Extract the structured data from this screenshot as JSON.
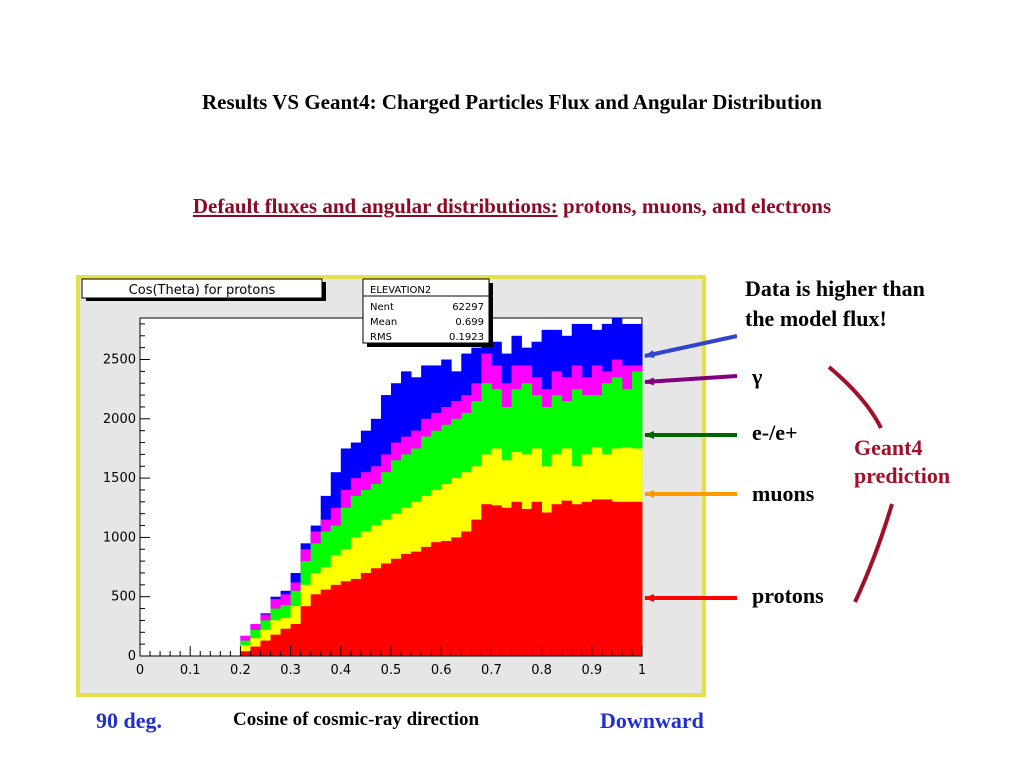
{
  "slide": {
    "title": "Results VS Geant4: Charged Particles Flux and Angular Distribution",
    "subtitle_underlined": "Default fluxes and angular distributions:",
    "subtitle_rest": " protons, muons, and electrons"
  },
  "annotations": {
    "data_higher_line1": "Data is higher than",
    "data_higher_line2": "the model flux!",
    "gamma": "γ",
    "electrons": "e-/e+",
    "muons": "muons",
    "protons": "protons",
    "geant4_line1": "Geant4",
    "geant4_line2": "prediction",
    "left_label": "90 deg.",
    "center_label": "Cosine of cosmic-ray direction",
    "right_label": "Downward"
  },
  "colors": {
    "frame": "#e6e04a",
    "canvas": "#e6e6e6",
    "plot": "#ffffff",
    "protons": "#ff0000",
    "muons": "#ffff00",
    "electrons": "#00ff00",
    "gamma": "#ff00ff",
    "data": "#0000ff",
    "arrow_data": "#3344cc",
    "arrow_gamma": "#800080",
    "arrow_electrons": "#006400",
    "arrow_muons": "#ff9900",
    "arrow_protons": "#ff0000",
    "brace": "#a0102a"
  },
  "chart_data": {
    "type": "bar",
    "title": "Cos(Theta) for protons",
    "stats_box": {
      "name": "ELEVATION2",
      "entries_label": "Nent",
      "entries_value": "62297",
      "mean_label": "Mean",
      "mean_value": "0.699",
      "rms_label": "RMS",
      "rms_value": "0.1923"
    },
    "xlabel": "",
    "ylabel": "",
    "xlim": [
      0,
      1
    ],
    "ylim": [
      0,
      2850
    ],
    "x_ticks": [
      "0",
      "0.1",
      "0.2",
      "0.3",
      "0.4",
      "0.5",
      "0.6",
      "0.7",
      "0.8",
      "0.9",
      "1"
    ],
    "y_ticks": [
      "0",
      "500",
      "1000",
      "1500",
      "2000",
      "2500"
    ],
    "bin_start": 0.2,
    "bin_width": 0.02,
    "series": [
      {
        "name": "protons",
        "values": [
          40,
          80,
          130,
          180,
          230,
          270,
          420,
          520,
          560,
          600,
          630,
          650,
          700,
          740,
          780,
          820,
          860,
          880,
          920,
          960,
          970,
          1000,
          1050,
          1150,
          1280,
          1270,
          1250,
          1300,
          1240,
          1300,
          1210,
          1280,
          1310,
          1280,
          1300,
          1320,
          1320,
          1300,
          1300,
          1300
        ]
      },
      {
        "name": "muons",
        "values": [
          90,
          150,
          220,
          300,
          320,
          420,
          600,
          700,
          750,
          850,
          900,
          1000,
          1050,
          1100,
          1150,
          1200,
          1250,
          1300,
          1350,
          1400,
          1450,
          1500,
          1550,
          1600,
          1700,
          1750,
          1650,
          1720,
          1700,
          1750,
          1600,
          1700,
          1750,
          1600,
          1700,
          1760,
          1700,
          1750,
          1760,
          1750
        ]
      },
      {
        "name": "e-/e+",
        "values": [
          130,
          220,
          300,
          400,
          430,
          550,
          800,
          950,
          1050,
          1100,
          1250,
          1350,
          1400,
          1450,
          1550,
          1650,
          1700,
          1750,
          1850,
          1900,
          1950,
          2000,
          2050,
          2150,
          2300,
          2250,
          2100,
          2250,
          2300,
          2200,
          2100,
          2200,
          2150,
          2250,
          2200,
          2200,
          2300,
          2350,
          2250,
          2400
        ]
      },
      {
        "name": "γ",
        "values": [
          170,
          270,
          350,
          480,
          520,
          620,
          900,
          1050,
          1150,
          1250,
          1400,
          1500,
          1550,
          1600,
          1700,
          1800,
          1850,
          1900,
          2000,
          2050,
          2100,
          2150,
          2200,
          2300,
          2550,
          2450,
          2300,
          2450,
          2450,
          2350,
          2250,
          2400,
          2350,
          2450,
          2350,
          2450,
          2400,
          2500,
          2450,
          2450
        ]
      },
      {
        "name": "data",
        "values": [
          170,
          270,
          360,
          500,
          550,
          700,
          950,
          1100,
          1350,
          1550,
          1750,
          1800,
          1900,
          2000,
          2200,
          2300,
          2400,
          2350,
          2450,
          2450,
          2500,
          2400,
          2550,
          2600,
          2750,
          2650,
          2550,
          2700,
          2600,
          2650,
          2750,
          2750,
          2700,
          2800,
          2800,
          2750,
          2800,
          2850,
          2800,
          2800
        ]
      }
    ]
  }
}
